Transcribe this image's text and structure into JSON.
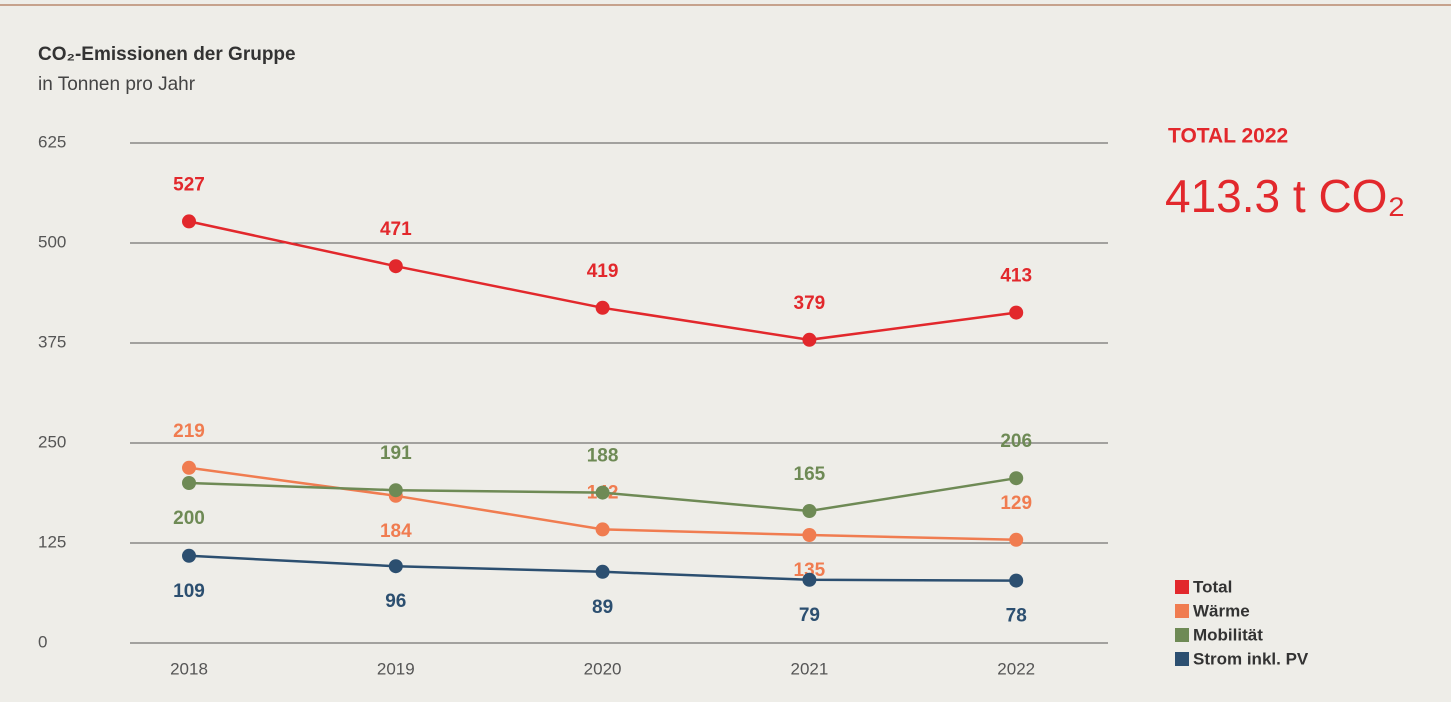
{
  "chart_data": {
    "type": "line",
    "title": "CO₂-Emissionen der Gruppe",
    "subtitle": "in Tonnen pro Jahr",
    "annotation_label": "TOTAL 2022",
    "annotation_value": "413.3 t CO₂",
    "categories": [
      "2018",
      "2019",
      "2020",
      "2021",
      "2022"
    ],
    "series": [
      {
        "name": "Total",
        "color": "#e2282c",
        "values": [
          527,
          471,
          419,
          379,
          413
        ]
      },
      {
        "name": "Wärme",
        "color": "#f07c50",
        "values": [
          219,
          184,
          142,
          135,
          129
        ]
      },
      {
        "name": "Mobilität",
        "color": "#6e8a55",
        "values": [
          200,
          191,
          188,
          165,
          206
        ]
      },
      {
        "name": "Strom inkl. PV",
        "color": "#2c4f70",
        "values": [
          109,
          96,
          89,
          79,
          78
        ]
      }
    ],
    "ylim": [
      0,
      625
    ],
    "yticks": [
      0,
      125,
      250,
      375,
      500,
      625
    ],
    "grid": true,
    "legend": "bottom-right"
  }
}
